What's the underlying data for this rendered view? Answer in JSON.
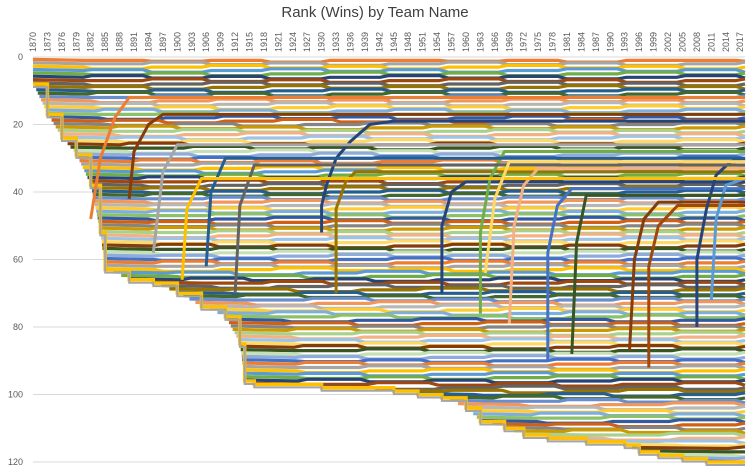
{
  "chart_data": {
    "type": "line",
    "title": "Rank (Wins) by Team Name",
    "xlabel": "",
    "ylabel": "",
    "x_ticks": [
      "1870",
      "1873",
      "1876",
      "1879",
      "1882",
      "1885",
      "1888",
      "1891",
      "1894",
      "1897",
      "1900",
      "1903",
      "1906",
      "1909",
      "1912",
      "1915",
      "1918",
      "1921",
      "1924",
      "1927",
      "1930",
      "1933",
      "1936",
      "1939",
      "1942",
      "1945",
      "1948",
      "1951",
      "1954",
      "1957",
      "1960",
      "1963",
      "1966",
      "1969",
      "1972",
      "1975",
      "1978",
      "1981",
      "1984",
      "1987",
      "1990",
      "1993",
      "1996",
      "1999",
      "2002",
      "2005",
      "2008",
      "2011",
      "2014",
      "2017"
    ],
    "y_ticks": [
      0,
      20,
      40,
      60,
      80,
      100,
      120
    ],
    "xlim": [
      1870,
      2018
    ],
    "ylim": [
      0,
      120
    ],
    "y_reversed": true,
    "grid": "horizontal",
    "legend": "none",
    "bottom_boundary": [
      [
        1870,
        8
      ],
      [
        1873,
        17
      ],
      [
        1876,
        24
      ],
      [
        1879,
        29
      ],
      [
        1882,
        38
      ],
      [
        1884,
        52
      ],
      [
        1885,
        63
      ],
      [
        1890,
        66
      ],
      [
        1895,
        67
      ],
      [
        1900,
        70
      ],
      [
        1905,
        74
      ],
      [
        1910,
        77
      ],
      [
        1913,
        85
      ],
      [
        1914,
        96
      ],
      [
        1916,
        97
      ],
      [
        1930,
        98
      ],
      [
        1945,
        99
      ],
      [
        1950,
        100
      ],
      [
        1955,
        101
      ],
      [
        1960,
        104
      ],
      [
        1963,
        108
      ],
      [
        1968,
        110
      ],
      [
        1972,
        112
      ],
      [
        1977,
        113
      ],
      [
        1985,
        114
      ],
      [
        1993,
        115
      ],
      [
        1996,
        117
      ],
      [
        2000,
        118
      ],
      [
        2005,
        119
      ],
      [
        2010,
        120
      ],
      [
        2018,
        120
      ]
    ],
    "highlighted_series": [
      {
        "name": "",
        "color": "#264478",
        "points": [
          [
            1930,
            52
          ],
          [
            1930,
            44
          ],
          [
            1931,
            38
          ],
          [
            1933,
            30
          ],
          [
            1936,
            25
          ],
          [
            1940,
            20
          ],
          [
            1945,
            19
          ],
          [
            1960,
            19
          ],
          [
            2018,
            19
          ]
        ]
      },
      {
        "name": "",
        "color": "#997300",
        "points": [
          [
            1933,
            70
          ],
          [
            1933,
            45
          ],
          [
            1935,
            37
          ],
          [
            1937,
            34
          ],
          [
            2018,
            34
          ]
        ]
      },
      {
        "name": "",
        "color": "#264478",
        "points": [
          [
            1955,
            70
          ],
          [
            1955,
            50
          ],
          [
            1957,
            40
          ],
          [
            1960,
            37
          ],
          [
            2018,
            37
          ]
        ]
      },
      {
        "name": "",
        "color": "#70ad47",
        "points": [
          [
            1963,
            76
          ],
          [
            1963,
            52
          ],
          [
            1965,
            36
          ],
          [
            1968,
            28
          ],
          [
            2018,
            28
          ]
        ]
      },
      {
        "name": "",
        "color": "#f4b183",
        "points": [
          [
            1969,
            79
          ],
          [
            1970,
            50
          ],
          [
            1972,
            38
          ],
          [
            1975,
            33
          ],
          [
            2018,
            33
          ]
        ]
      },
      {
        "name": "",
        "color": "#4472c4",
        "points": [
          [
            1977,
            90
          ],
          [
            1977,
            58
          ],
          [
            1979,
            44
          ],
          [
            1982,
            39
          ],
          [
            2018,
            39
          ]
        ]
      },
      {
        "name": "",
        "color": "#843c0c",
        "points": [
          [
            1994,
            87
          ],
          [
            1995,
            60
          ],
          [
            1997,
            48
          ],
          [
            2000,
            43
          ],
          [
            2018,
            43
          ]
        ]
      },
      {
        "name": "",
        "color": "#9e480e",
        "points": [
          [
            1998,
            92
          ],
          [
            1998,
            62
          ],
          [
            2000,
            50
          ],
          [
            2004,
            44
          ],
          [
            2018,
            44
          ]
        ]
      },
      {
        "name": "",
        "color": "#264478",
        "points": [
          [
            2008,
            80
          ],
          [
            2008,
            60
          ],
          [
            2010,
            45
          ],
          [
            2012,
            35
          ],
          [
            2015,
            31
          ],
          [
            2018,
            30
          ]
        ]
      },
      {
        "name": "",
        "color": "#5b9bd5",
        "points": [
          [
            2011,
            72
          ],
          [
            2012,
            48
          ],
          [
            2014,
            38
          ],
          [
            2018,
            36
          ]
        ]
      },
      {
        "name": "",
        "color": "#ed7d31",
        "points": [
          [
            1882,
            48
          ],
          [
            1884,
            30
          ],
          [
            1887,
            18
          ],
          [
            1890,
            12
          ],
          [
            2018,
            12
          ]
        ]
      },
      {
        "name": "",
        "color": "#843c0c",
        "points": [
          [
            1890,
            42
          ],
          [
            1891,
            28
          ],
          [
            1894,
            20
          ],
          [
            1897,
            17
          ],
          [
            2018,
            17
          ]
        ]
      },
      {
        "name": "",
        "color": "#a5a5a5",
        "points": [
          [
            1895,
            58
          ],
          [
            1897,
            34
          ],
          [
            1900,
            26
          ],
          [
            2018,
            26
          ]
        ]
      },
      {
        "name": "",
        "color": "#255e91",
        "points": [
          [
            1906,
            62
          ],
          [
            1907,
            40
          ],
          [
            1910,
            30
          ],
          [
            2018,
            30
          ]
        ]
      },
      {
        "name": "",
        "color": "#636363",
        "points": [
          [
            1912,
            70
          ],
          [
            1913,
            44
          ],
          [
            1916,
            32
          ],
          [
            2018,
            32
          ]
        ]
      },
      {
        "name": "",
        "color": "#ffc000",
        "points": [
          [
            1901,
            66
          ],
          [
            1902,
            45
          ],
          [
            1905,
            36
          ],
          [
            2018,
            36
          ]
        ]
      },
      {
        "name": "",
        "color": "#375623",
        "points": [
          [
            1982,
            88
          ],
          [
            1983,
            55
          ],
          [
            1985,
            41
          ],
          [
            2018,
            41
          ]
        ]
      },
      {
        "name": "",
        "color": "#ffd966",
        "points": [
          [
            1964,
            64
          ],
          [
            1966,
            42
          ],
          [
            1969,
            31
          ],
          [
            2018,
            31
          ]
        ]
      }
    ]
  }
}
